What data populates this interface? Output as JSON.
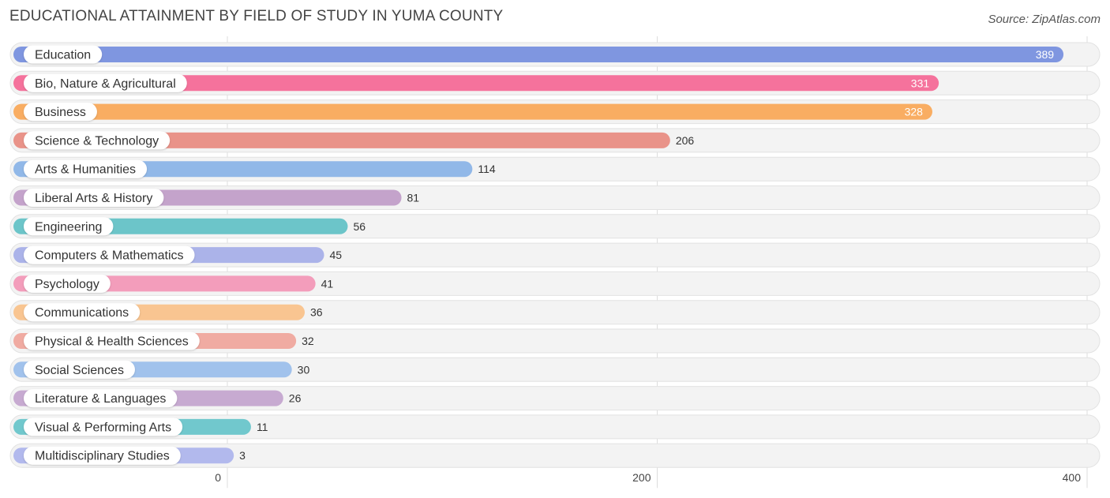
{
  "chart_data": {
    "type": "bar",
    "orientation": "horizontal",
    "title": "EDUCATIONAL ATTAINMENT BY FIELD OF STUDY IN YUMA COUNTY",
    "source": "Source: ZipAtlas.com",
    "xlabel": "",
    "ylabel": "",
    "xlim": [
      0,
      400
    ],
    "ticks": [
      0,
      200,
      400
    ],
    "tick_labels": [
      "0",
      "200",
      "400"
    ],
    "grid": true,
    "categories": [
      "Education",
      "Bio, Nature & Agricultural",
      "Business",
      "Science & Technology",
      "Arts & Humanities",
      "Liberal Arts & History",
      "Engineering",
      "Computers & Mathematics",
      "Psychology",
      "Communications",
      "Physical & Health Sciences",
      "Social Sciences",
      "Literature & Languages",
      "Visual & Performing Arts",
      "Multidisciplinary Studies"
    ],
    "values": [
      389,
      331,
      328,
      206,
      114,
      81,
      56,
      45,
      41,
      36,
      32,
      30,
      26,
      11,
      3
    ],
    "value_labels": [
      "389",
      "331",
      "328",
      "206",
      "114",
      "81",
      "56",
      "45",
      "41",
      "36",
      "32",
      "30",
      "26",
      "11",
      "3"
    ],
    "colors": [
      "#7f96e0",
      "#f5729c",
      "#f9ad62",
      "#e99389",
      "#91b8e8",
      "#c4a3cb",
      "#6cc5c9",
      "#abb3e9",
      "#f39dbb",
      "#f9c591",
      "#f0aba2",
      "#a1c2ec",
      "#c7aad1",
      "#71c8cd",
      "#b2b9ed"
    ]
  }
}
